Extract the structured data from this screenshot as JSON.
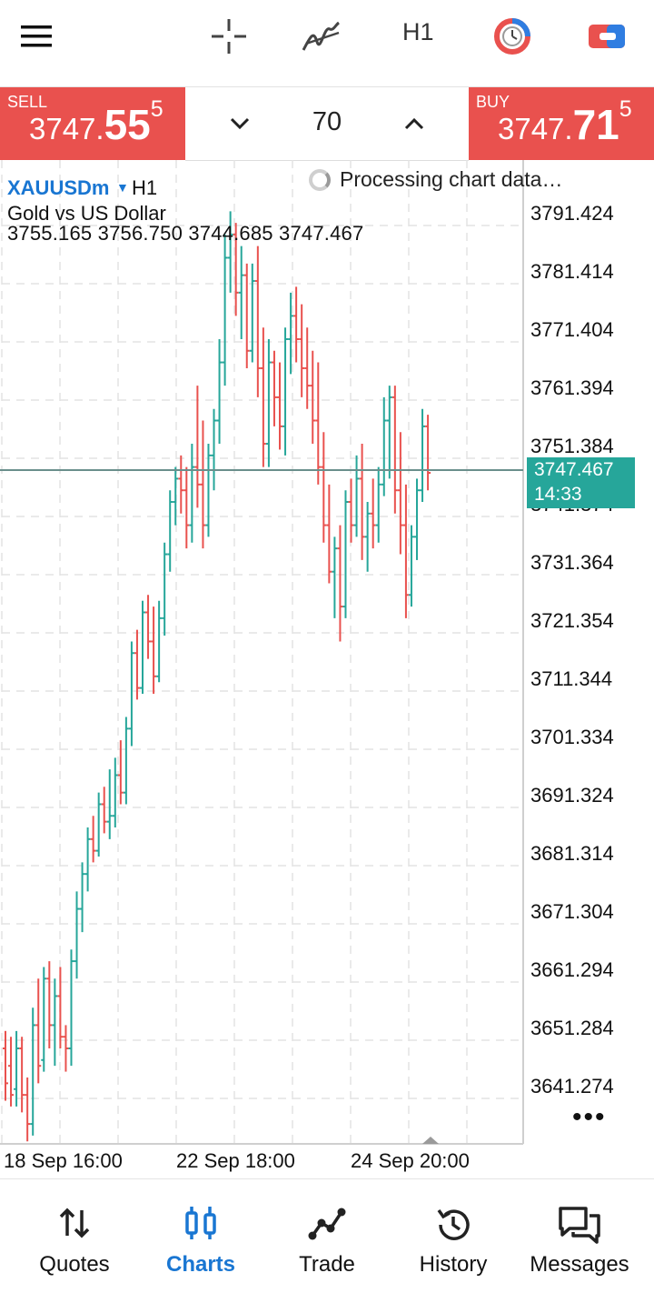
{
  "toolbar": {
    "timeframe": "H1"
  },
  "trade": {
    "sell": {
      "label": "SELL",
      "price_main": "3747.",
      "price_big": "55",
      "price_small": "5"
    },
    "buy": {
      "label": "BUY",
      "price_main": "3747.",
      "price_big": "71",
      "price_small": "5"
    },
    "lot_value": "70"
  },
  "chart": {
    "symbol": "XAUUSDm",
    "timeframe": "H1",
    "description": "Gold vs US Dollar",
    "ohlc": "3755.165 3756.750 3744.685 3747.467",
    "status": "Processing chart data…",
    "current_price": "3747.467",
    "current_time": "14:33",
    "more": "•••"
  },
  "chart_data": {
    "type": "bar",
    "y_ticks": [
      "3791.424",
      "3781.414",
      "3771.404",
      "3761.394",
      "3751.384",
      "3741.374",
      "3731.364",
      "3721.354",
      "3711.344",
      "3701.334",
      "3691.324",
      "3681.314",
      "3671.304",
      "3661.294",
      "3651.284",
      "3641.274"
    ],
    "x_ticks": [
      "18 Sep 16:00",
      "22 Sep 18:00",
      "24 Sep 20:00"
    ],
    "ylim": [
      3632.5,
      3800.5
    ],
    "grid": true,
    "current_price": 3747.467,
    "up_color": "#26a69a",
    "down_color": "#e9514e",
    "bars": [
      {
        "o": 3648,
        "h": 3651,
        "l": 3639,
        "c": 3642
      },
      {
        "o": 3645,
        "h": 3650,
        "l": 3638,
        "c": 3640
      },
      {
        "o": 3641,
        "h": 3651,
        "l": 3638,
        "c": 3648
      },
      {
        "o": 3648,
        "h": 3650,
        "l": 3637,
        "c": 3640
      },
      {
        "o": 3640,
        "h": 3643,
        "l": 3632,
        "c": 3635
      },
      {
        "o": 3635,
        "h": 3655,
        "l": 3633,
        "c": 3652
      },
      {
        "o": 3652,
        "h": 3660,
        "l": 3642,
        "c": 3645
      },
      {
        "o": 3646,
        "h": 3662,
        "l": 3644,
        "c": 3660
      },
      {
        "o": 3660,
        "h": 3663,
        "l": 3648,
        "c": 3652
      },
      {
        "o": 3652,
        "h": 3660,
        "l": 3645,
        "c": 3657
      },
      {
        "o": 3657,
        "h": 3662,
        "l": 3648,
        "c": 3650
      },
      {
        "o": 3650,
        "h": 3652,
        "l": 3644,
        "c": 3648
      },
      {
        "o": 3648,
        "h": 3665,
        "l": 3645,
        "c": 3663
      },
      {
        "o": 3663,
        "h": 3675,
        "l": 3660,
        "c": 3672
      },
      {
        "o": 3672,
        "h": 3680,
        "l": 3668,
        "c": 3678
      },
      {
        "o": 3678,
        "h": 3686,
        "l": 3675,
        "c": 3684
      },
      {
        "o": 3684,
        "h": 3688,
        "l": 3680,
        "c": 3682
      },
      {
        "o": 3682,
        "h": 3692,
        "l": 3681,
        "c": 3690
      },
      {
        "o": 3690,
        "h": 3693,
        "l": 3685,
        "c": 3687
      },
      {
        "o": 3687,
        "h": 3696,
        "l": 3684,
        "c": 3688
      },
      {
        "o": 3688,
        "h": 3698,
        "l": 3686,
        "c": 3695
      },
      {
        "o": 3695,
        "h": 3701,
        "l": 3690,
        "c": 3692
      },
      {
        "o": 3692,
        "h": 3705,
        "l": 3690,
        "c": 3703
      },
      {
        "o": 3703,
        "h": 3718,
        "l": 3700,
        "c": 3716
      },
      {
        "o": 3716,
        "h": 3720,
        "l": 3708,
        "c": 3710
      },
      {
        "o": 3710,
        "h": 3725,
        "l": 3709,
        "c": 3723
      },
      {
        "o": 3723,
        "h": 3726,
        "l": 3715,
        "c": 3718
      },
      {
        "o": 3718,
        "h": 3724,
        "l": 3709,
        "c": 3712
      },
      {
        "o": 3712,
        "h": 3725,
        "l": 3711,
        "c": 3722
      },
      {
        "o": 3722,
        "h": 3735,
        "l": 3719,
        "c": 3733
      },
      {
        "o": 3733,
        "h": 3744,
        "l": 3730,
        "c": 3742
      },
      {
        "o": 3742,
        "h": 3748,
        "l": 3738,
        "c": 3746
      },
      {
        "o": 3746,
        "h": 3750,
        "l": 3740,
        "c": 3744
      },
      {
        "o": 3744,
        "h": 3748,
        "l": 3734,
        "c": 3738
      },
      {
        "o": 3738,
        "h": 3752,
        "l": 3735,
        "c": 3748
      },
      {
        "o": 3748,
        "h": 3762,
        "l": 3741,
        "c": 3745
      },
      {
        "o": 3745,
        "h": 3756,
        "l": 3734,
        "c": 3738
      },
      {
        "o": 3738,
        "h": 3752,
        "l": 3736,
        "c": 3750
      },
      {
        "o": 3750,
        "h": 3758,
        "l": 3744,
        "c": 3756
      },
      {
        "o": 3756,
        "h": 3770,
        "l": 3752,
        "c": 3766
      },
      {
        "o": 3766,
        "h": 3788,
        "l": 3762,
        "c": 3784
      },
      {
        "o": 3784,
        "h": 3792,
        "l": 3778,
        "c": 3788
      },
      {
        "o": 3788,
        "h": 3790,
        "l": 3774,
        "c": 3778
      },
      {
        "o": 3778,
        "h": 3786,
        "l": 3770,
        "c": 3781
      },
      {
        "o": 3781,
        "h": 3783,
        "l": 3765,
        "c": 3768
      },
      {
        "o": 3768,
        "h": 3783,
        "l": 3766,
        "c": 3780
      },
      {
        "o": 3780,
        "h": 3786,
        "l": 3760,
        "c": 3765
      },
      {
        "o": 3765,
        "h": 3772,
        "l": 3748,
        "c": 3752
      },
      {
        "o": 3752,
        "h": 3770,
        "l": 3748,
        "c": 3766
      },
      {
        "o": 3766,
        "h": 3768,
        "l": 3755,
        "c": 3760
      },
      {
        "o": 3760,
        "h": 3766,
        "l": 3751,
        "c": 3755
      },
      {
        "o": 3755,
        "h": 3772,
        "l": 3750,
        "c": 3770
      },
      {
        "o": 3770,
        "h": 3778,
        "l": 3764,
        "c": 3774
      },
      {
        "o": 3774,
        "h": 3779,
        "l": 3766,
        "c": 3770
      },
      {
        "o": 3770,
        "h": 3776,
        "l": 3760,
        "c": 3765
      },
      {
        "o": 3765,
        "h": 3772,
        "l": 3758,
        "c": 3762
      },
      {
        "o": 3762,
        "h": 3768,
        "l": 3752,
        "c": 3756
      },
      {
        "o": 3756,
        "h": 3766,
        "l": 3745,
        "c": 3748
      },
      {
        "o": 3748,
        "h": 3754,
        "l": 3735,
        "c": 3738
      },
      {
        "o": 3738,
        "h": 3745,
        "l": 3728,
        "c": 3730
      },
      {
        "o": 3730,
        "h": 3736,
        "l": 3722,
        "c": 3734
      },
      {
        "o": 3734,
        "h": 3738,
        "l": 3718,
        "c": 3724
      },
      {
        "o": 3724,
        "h": 3744,
        "l": 3722,
        "c": 3742
      },
      {
        "o": 3742,
        "h": 3746,
        "l": 3735,
        "c": 3738
      },
      {
        "o": 3738,
        "h": 3750,
        "l": 3736,
        "c": 3746
      },
      {
        "o": 3746,
        "h": 3752,
        "l": 3732,
        "c": 3736
      },
      {
        "o": 3736,
        "h": 3742,
        "l": 3730,
        "c": 3740
      },
      {
        "o": 3740,
        "h": 3746,
        "l": 3734,
        "c": 3738
      },
      {
        "o": 3738,
        "h": 3748,
        "l": 3735,
        "c": 3745
      },
      {
        "o": 3745,
        "h": 3760,
        "l": 3743,
        "c": 3756
      },
      {
        "o": 3756,
        "h": 3762,
        "l": 3746,
        "c": 3760
      },
      {
        "o": 3760,
        "h": 3762,
        "l": 3740,
        "c": 3744
      },
      {
        "o": 3744,
        "h": 3754,
        "l": 3733,
        "c": 3738
      },
      {
        "o": 3738,
        "h": 3745,
        "l": 3722,
        "c": 3726
      },
      {
        "o": 3726,
        "h": 3738,
        "l": 3724,
        "c": 3736
      },
      {
        "o": 3736,
        "h": 3746,
        "l": 3732,
        "c": 3744
      },
      {
        "o": 3744,
        "h": 3758,
        "l": 3742,
        "c": 3755
      },
      {
        "o": 3755,
        "h": 3757,
        "l": 3744,
        "c": 3747
      }
    ]
  },
  "nav": {
    "items": [
      {
        "label": "Quotes"
      },
      {
        "label": "Charts"
      },
      {
        "label": "Trade"
      },
      {
        "label": "History"
      },
      {
        "label": "Messages"
      }
    ]
  }
}
